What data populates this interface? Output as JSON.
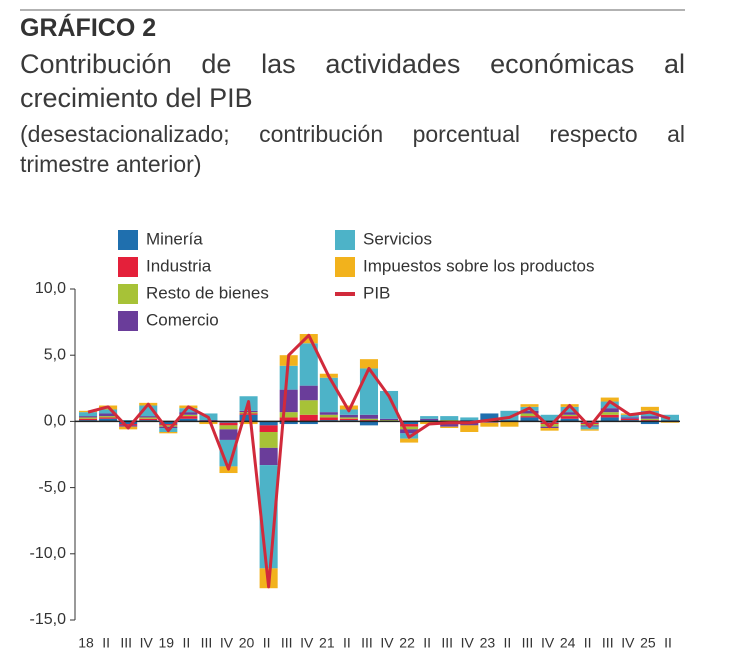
{
  "chart_data": {
    "type": "stacked_bar_line",
    "label": "GRÁFICO 2",
    "title": "Contribución de las actividades económicas al crecimiento del PIB",
    "subtitle": "(desestacionalizado; contribución porcentual respecto al trimestre anterior)",
    "categories": [
      "18",
      "II",
      "III",
      "IV",
      "19",
      "II",
      "III",
      "IV",
      "20",
      "II",
      "III",
      "IV",
      "21",
      "II",
      "III",
      "IV",
      "22",
      "II",
      "III",
      "IV",
      "23",
      "II",
      "III",
      "IV",
      "24",
      "II",
      "III",
      "IV",
      "25",
      "II"
    ],
    "ylim": [
      -15,
      10
    ],
    "yticks": [
      {
        "value": 10,
        "label": "10,0"
      },
      {
        "value": 5,
        "label": "5,0"
      },
      {
        "value": 0,
        "label": "0,0"
      },
      {
        "value": -5,
        "label": "-5,0"
      },
      {
        "value": -10,
        "label": "-10,0"
      },
      {
        "value": -15,
        "label": "-15,0"
      }
    ],
    "series": [
      {
        "name": "Minería",
        "color": "#1f6fae",
        "values": [
          0.1,
          0.2,
          -0.2,
          0.1,
          -0.2,
          0.2,
          0.0,
          -0.1,
          0.5,
          -0.3,
          -0.2,
          -0.2,
          0.1,
          0.1,
          -0.3,
          0.0,
          -0.2,
          0.1,
          -0.1,
          0.1,
          0.6,
          0.1,
          0.3,
          -0.1,
          0.2,
          -0.1,
          0.3,
          0.1,
          -0.2,
          0.1
        ]
      },
      {
        "name": "Industria",
        "color": "#e4203a",
        "values": [
          0.1,
          0.1,
          -0.1,
          0.1,
          -0.1,
          0.2,
          0.0,
          -0.2,
          0.1,
          -0.5,
          0.3,
          0.5,
          0.2,
          0.1,
          0.1,
          0.0,
          -0.2,
          0.0,
          -0.1,
          -0.1,
          0.0,
          0.0,
          0.1,
          -0.1,
          0.2,
          -0.1,
          0.2,
          0.1,
          0.1,
          0.0
        ]
      },
      {
        "name": "Resto de bienes",
        "color": "#a7c237",
        "values": [
          0.1,
          0.1,
          0.0,
          0.1,
          -0.1,
          0.1,
          0.0,
          -0.3,
          0.1,
          -1.2,
          0.4,
          1.1,
          0.2,
          0.1,
          0.1,
          0.1,
          -0.2,
          0.0,
          0.1,
          0.0,
          0.0,
          0.0,
          0.2,
          -0.2,
          0.1,
          -0.1,
          0.2,
          0.0,
          0.1,
          0.0
        ]
      },
      {
        "name": "Comercio",
        "color": "#6a3d9a",
        "values": [
          0.1,
          0.2,
          -0.1,
          0.1,
          -0.1,
          0.2,
          0.1,
          -0.8,
          0.1,
          -1.3,
          1.7,
          1.1,
          0.2,
          0.2,
          0.3,
          0.1,
          -0.3,
          0.1,
          -0.2,
          -0.2,
          -0.1,
          0.0,
          0.2,
          -0.1,
          0.2,
          -0.1,
          0.3,
          0.1,
          0.2,
          0.0
        ]
      },
      {
        "name": "Servicios",
        "color": "#4db3c8",
        "values": [
          0.3,
          0.3,
          0.1,
          0.8,
          -0.3,
          0.3,
          0.5,
          -2.0,
          1.1,
          -7.8,
          1.8,
          3.2,
          2.6,
          0.4,
          3.5,
          2.1,
          -0.4,
          0.2,
          0.3,
          0.2,
          0.0,
          0.7,
          0.3,
          0.5,
          0.4,
          -0.2,
          0.5,
          0.2,
          0.4,
          0.4
        ]
      },
      {
        "name": "Impuestos sobre los productos",
        "color": "#f2b21c",
        "values": [
          0.1,
          0.3,
          -0.2,
          0.2,
          -0.1,
          0.2,
          -0.2,
          -0.5,
          -0.2,
          -1.5,
          0.8,
          0.7,
          0.3,
          0.3,
          0.7,
          0.0,
          -0.3,
          -0.2,
          -0.1,
          -0.5,
          -0.3,
          -0.4,
          0.2,
          -0.2,
          0.2,
          -0.1,
          0.3,
          0.1,
          0.3,
          -0.1
        ]
      }
    ],
    "line": {
      "name": "PIB",
      "color": "#d12a3b",
      "values": [
        0.7,
        1.1,
        -0.5,
        1.3,
        -0.7,
        1.1,
        0.3,
        -3.6,
        1.5,
        -12.5,
        5.0,
        6.5,
        3.4,
        0.8,
        4.0,
        1.9,
        -1.2,
        -0.2,
        -0.1,
        -0.1,
        0.1,
        0.3,
        1.0,
        -0.4,
        1.2,
        -0.4,
        1.5,
        0.5,
        0.7,
        0.2
      ]
    }
  }
}
